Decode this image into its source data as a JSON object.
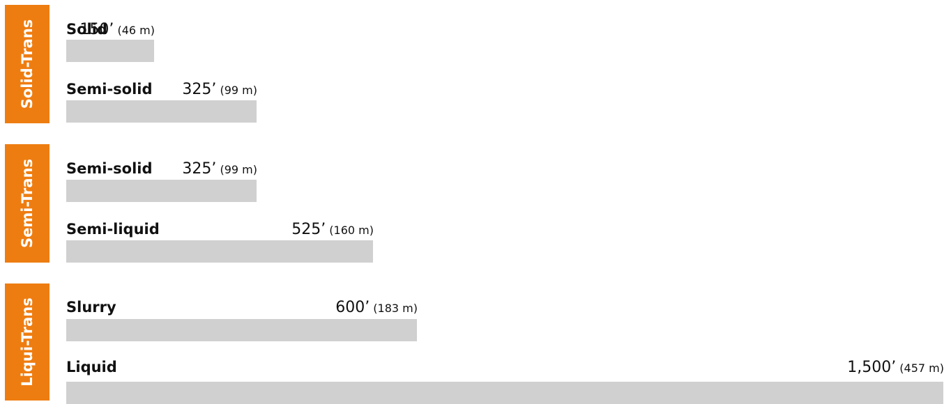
{
  "colors": {
    "accent": "#ee7d11",
    "bar": "#d0d0d0"
  },
  "chart_data": {
    "type": "bar",
    "orientation": "horizontal",
    "xlim": [
      0,
      1500
    ],
    "grid": false,
    "groups": [
      {
        "label": "Solid-Trans",
        "items": [
          {
            "name": "Solid",
            "value": 150,
            "value_ft": "150’",
            "value_m": "(46 m)"
          },
          {
            "name": "Semi-solid",
            "value": 325,
            "value_ft": "325’",
            "value_m": "(99 m)"
          }
        ]
      },
      {
        "label": "Semi-Trans",
        "items": [
          {
            "name": "Semi-solid",
            "value": 325,
            "value_ft": "325’",
            "value_m": "(99 m)"
          },
          {
            "name": "Semi-liquid",
            "value": 525,
            "value_ft": "525’",
            "value_m": "(160 m)"
          }
        ]
      },
      {
        "label": "Liqui-Trans",
        "items": [
          {
            "name": "Slurry",
            "value": 600,
            "value_ft": "600’",
            "value_m": "(183 m)"
          },
          {
            "name": "Liquid",
            "value": 1500,
            "value_ft": "1,500’",
            "value_m": "(457 m)"
          }
        ]
      }
    ]
  }
}
